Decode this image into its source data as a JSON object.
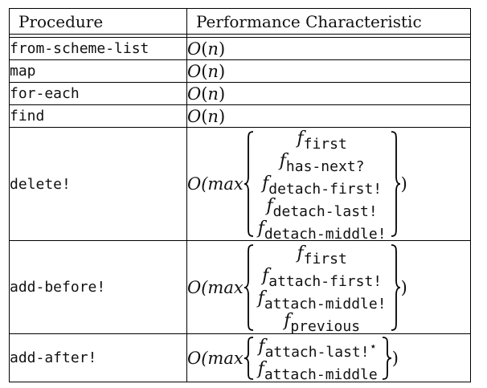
{
  "headers": {
    "procedure": "Procedure",
    "performance": "Performance Characteristic"
  },
  "simple_rows": [
    {
      "procedure": "from-scheme-list",
      "O": "O",
      "lp": "(",
      "n": "n",
      "rp": ")"
    },
    {
      "procedure": "map",
      "O": "O",
      "lp": "(",
      "n": "n",
      "rp": ")"
    },
    {
      "procedure": "for-each",
      "O": "O",
      "lp": "(",
      "n": "n",
      "rp": ")"
    },
    {
      "procedure": "find",
      "O": "O",
      "lp": "(",
      "n": "n",
      "rp": ")"
    }
  ],
  "complex_rows": [
    {
      "procedure": "delete!",
      "prefix": "O(max",
      "suffix": ")",
      "f": "f",
      "subs": [
        "first",
        "has-next?",
        "detach-first!",
        "detach-last!",
        "detach-middle!"
      ]
    },
    {
      "procedure": "add-before!",
      "prefix": "O(max",
      "suffix": ")",
      "f": "f",
      "subs": [
        "first",
        "attach-first!",
        "attach-middle!",
        "previous"
      ]
    },
    {
      "procedure": "add-after!",
      "prefix": "O(max",
      "suffix": ")",
      "f": "f",
      "subs": [
        "attach-last!",
        "attach-middle"
      ],
      "star": "⋆"
    }
  ],
  "icons": {
    "left_brace": "left-curly-brace-icon",
    "right_brace": "right-curly-brace-icon"
  }
}
